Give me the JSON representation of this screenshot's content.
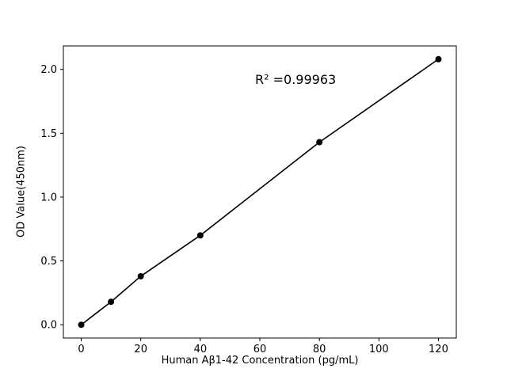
{
  "chart_data": {
    "type": "line",
    "title": "",
    "xlabel": "Human Aβ1-42 Concentration (pg/mL)",
    "ylabel": "OD Value(450nm)",
    "annotation": {
      "text": "R² =0.99963",
      "x": 58,
      "y": 1.93
    },
    "series": [
      {
        "name": "standard-curve",
        "x": [
          0,
          10,
          20,
          40,
          80,
          120
        ],
        "y": [
          0.0,
          0.18,
          0.38,
          0.7,
          1.43,
          2.08
        ]
      }
    ],
    "xlim": [
      -6,
      126
    ],
    "ylim": [
      -0.104,
      2.184
    ],
    "xticks": {
      "values": [
        0,
        20,
        40,
        60,
        80,
        100,
        120
      ],
      "labels": [
        "0",
        "20",
        "40",
        "60",
        "80",
        "100",
        "120"
      ]
    },
    "yticks": {
      "values": [
        0,
        0.5,
        1.0,
        1.5,
        2.0
      ],
      "labels": [
        "0.0",
        "0.5",
        "1.0",
        "1.5",
        "2.0"
      ]
    },
    "grid": false,
    "legend": false,
    "marker": "circle",
    "marker_size": 8,
    "line_color": "#000000",
    "marker_color": "#000000",
    "axis_color": "#000000",
    "background_color": "#ffffff"
  }
}
